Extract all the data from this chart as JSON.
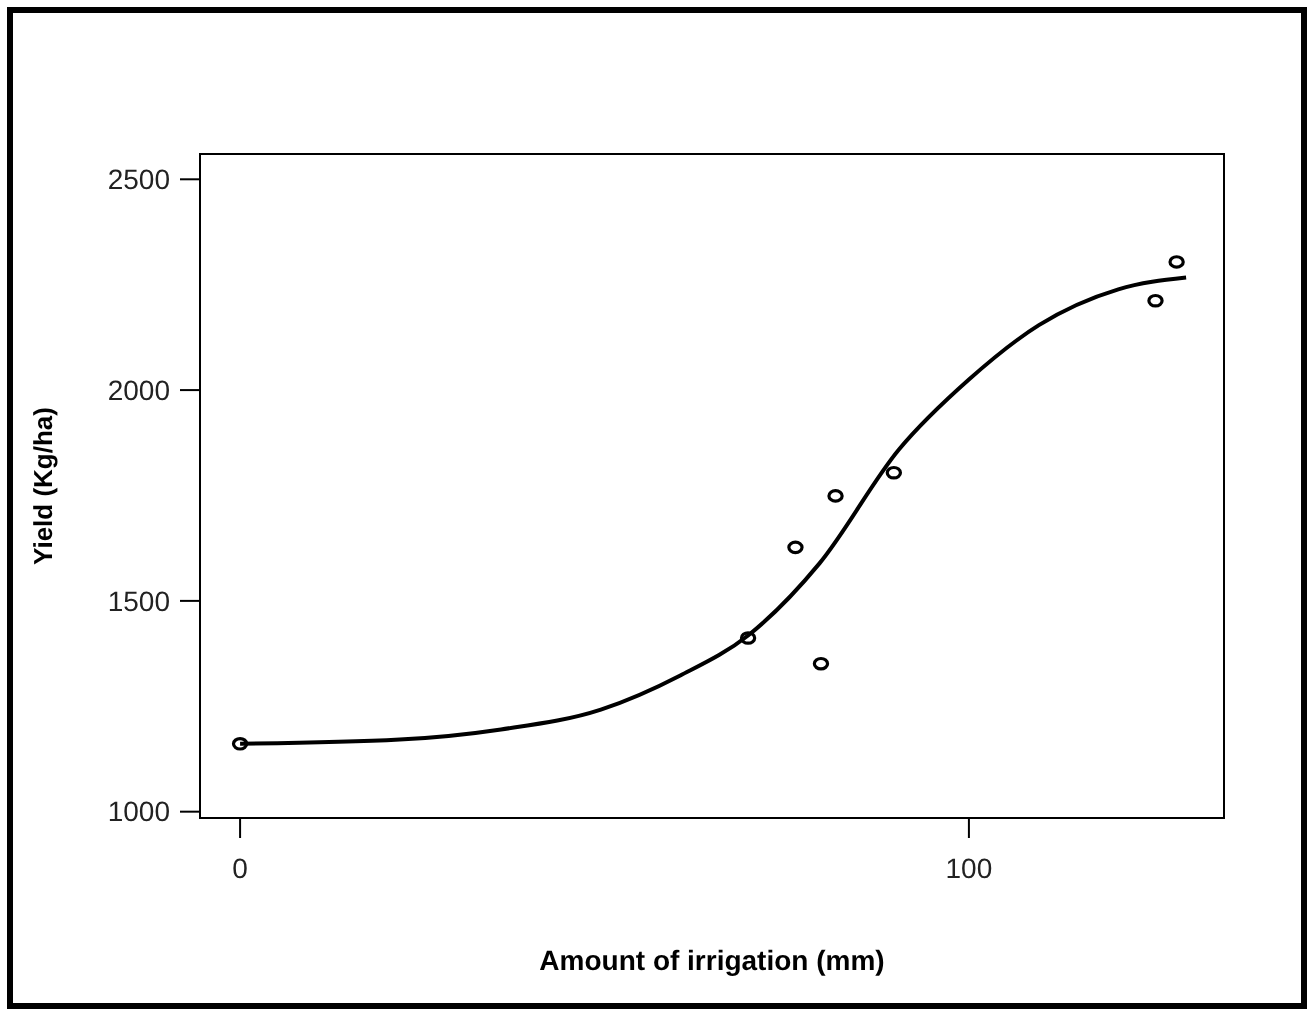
{
  "chart_data": {
    "type": "scatter",
    "xlabel": "Amount of irrigation (mm)",
    "ylabel": "Yield (Kg/ha)",
    "xlim": [
      -5.5,
      135
    ],
    "ylim": [
      985,
      2560
    ],
    "xticks": [
      0,
      100
    ],
    "yticks": [
      1000,
      1500,
      2000,
      2500
    ],
    "grid": false,
    "marker": "circle",
    "series": [
      {
        "color": "#000000",
        "x": [
          0,
          69.7,
          76.2,
          79.7,
          81.7,
          89.7,
          125.6,
          128.5
        ],
        "values": [
          1161,
          1412,
          1627,
          1351,
          1749,
          1804,
          2212,
          2304
        ]
      },
      {
        "type": "line",
        "color": "#000000",
        "marker": "none",
        "line_style": "solid",
        "x": [
          0,
          21.9,
          35.8,
          49.5,
          60.4,
          69.7,
          79.5,
          90.4,
          100,
          109.6,
          120.5,
          129.8
        ],
        "values": [
          1161,
          1171,
          1195,
          1242,
          1323,
          1418,
          1589,
          1859,
          2025,
          2154,
          2239,
          2267
        ]
      }
    ]
  }
}
